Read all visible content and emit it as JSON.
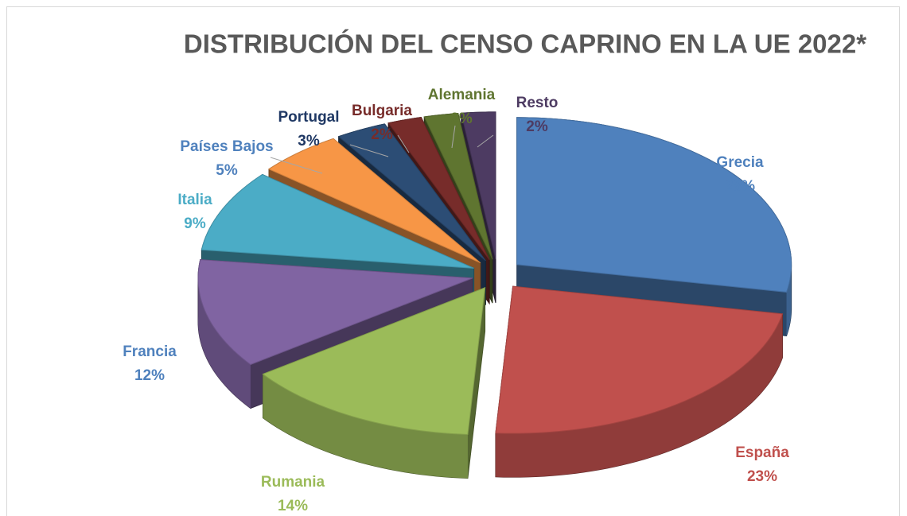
{
  "chart_data": {
    "type": "pie3d",
    "title": "DISTRIBUCIÓN DEL CENSO CAPRINO EN LA UE 2022*",
    "categories": [
      "Grecia",
      "España",
      "Rumania",
      "Francia",
      "Italia",
      "Países Bajos",
      "Portugal",
      "Bulgaria",
      "Alemania",
      "Resto"
    ],
    "values": [
      28,
      23,
      14,
      12,
      9,
      5,
      3,
      2,
      2,
      2
    ],
    "value_labels": [
      "28%",
      "23%",
      "14%",
      "12%",
      "9%",
      "5%",
      "3%",
      "2%",
      "2%",
      "2%"
    ],
    "colors": [
      "#4f81bd",
      "#c0504d",
      "#9bbb59",
      "#8064a2",
      "#4bacc6",
      "#f79646",
      "#2c4d75",
      "#772c2a",
      "#5f7530",
      "#4d3b62"
    ],
    "label_colors": [
      "#4f81bd",
      "#c0504d",
      "#9bbb59",
      "#4f81bd",
      "#4bacc6",
      "#4f81bd",
      "#1f3864",
      "#772c2a",
      "#5f7530",
      "#4d3b62"
    ]
  }
}
